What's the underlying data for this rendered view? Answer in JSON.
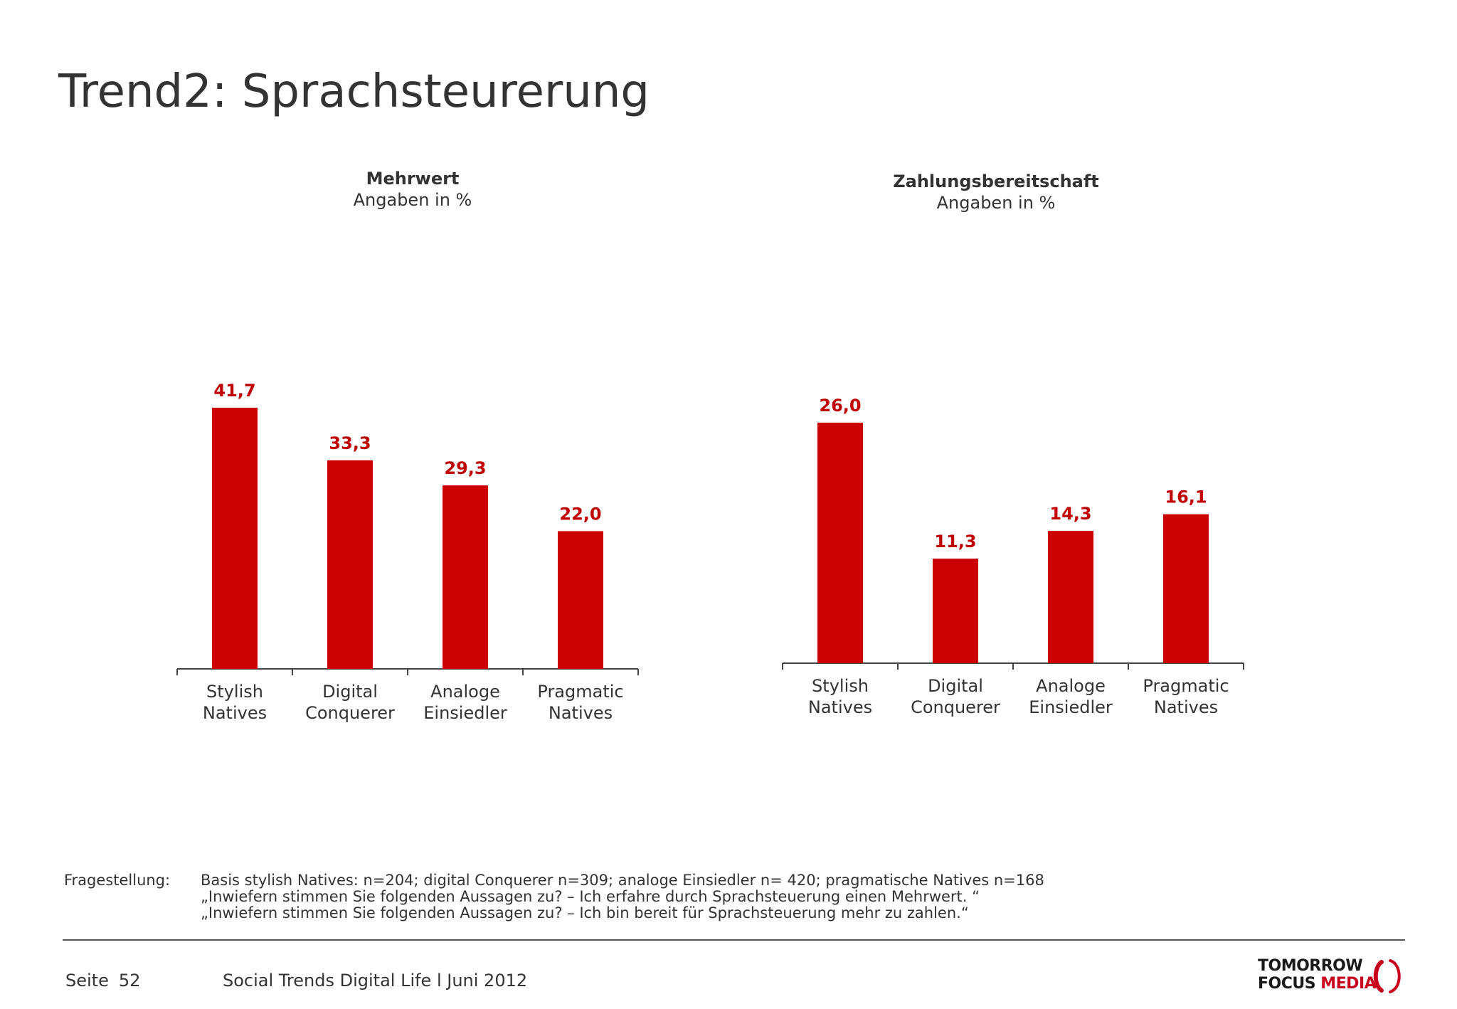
{
  "title": "Trend2: Sprachsteurerung",
  "colors": {
    "bar": "#cc0000",
    "value_label": "#c00000",
    "axis": "#444444",
    "text": "#333333",
    "logo_accent": "#c8001e"
  },
  "chart_data": [
    {
      "type": "bar",
      "title": "Mehrwert",
      "subtitle": "Angaben in %",
      "categories": [
        [
          "Stylish",
          "Natives"
        ],
        [
          "Digital",
          "Conquerer"
        ],
        [
          "Analoge",
          "Einsiedler"
        ],
        [
          "Pragmatic",
          "Natives"
        ]
      ],
      "values": [
        41.7,
        33.3,
        29.3,
        22.0
      ],
      "value_labels": [
        "41,7",
        "33,3",
        "29,3",
        "22,0"
      ],
      "ylim": [
        0,
        100
      ],
      "grid": false,
      "legend": "none"
    },
    {
      "type": "bar",
      "title": "Zahlungsbereitschaft",
      "subtitle": "Angaben in %",
      "categories": [
        [
          "Stylish",
          "Natives"
        ],
        [
          "Digital",
          "Conquerer"
        ],
        [
          "Analoge",
          "Einsiedler"
        ],
        [
          "Pragmatic",
          "Natives"
        ]
      ],
      "values": [
        26.0,
        11.3,
        14.3,
        16.1
      ],
      "value_labels": [
        "26,0",
        "11,3",
        "14,3",
        "16,1"
      ],
      "ylim": [
        0,
        100
      ],
      "grid": false,
      "legend": "none"
    }
  ],
  "footnote": {
    "label": "Fragestellung:",
    "lines": [
      "Basis stylish Natives: n=204; digital Conquerer n=309; analoge Einsiedler n= 420; pragmatische Natives n=168",
      "„Inwiefern stimmen Sie folgenden Aussagen zu? – Ich erfahre durch Sprachsteuerung einen Mehrwert. “",
      "„Inwiefern stimmen Sie folgenden Aussagen zu? – Ich bin bereit für Sprachsteuerung mehr zu zahlen.“"
    ]
  },
  "footer": {
    "page_label": "Seite",
    "page_number": "52",
    "source": "Social Trends Digital Life l Juni 2012"
  },
  "logo": {
    "line1": "TOMORROW",
    "line2_a": "FOCUS",
    "line2_b": "MEDIA"
  }
}
